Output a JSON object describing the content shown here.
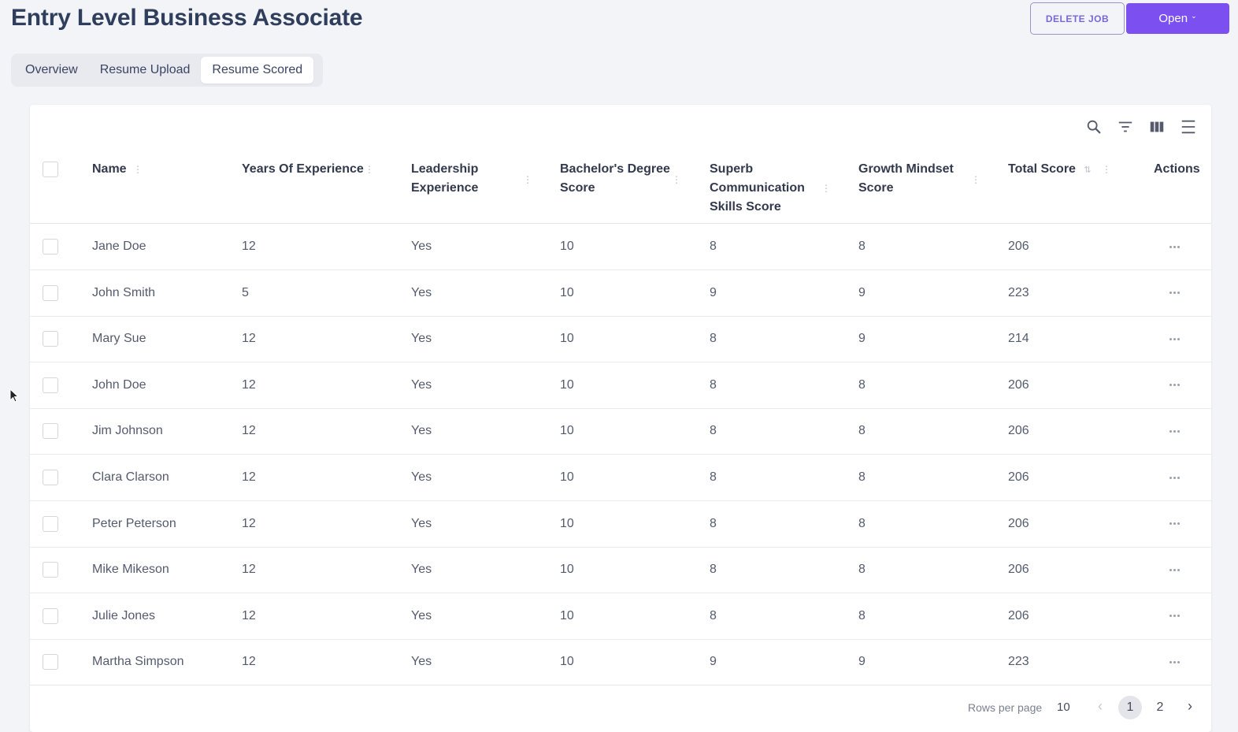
{
  "header": {
    "title": "Entry Level Business Associate",
    "delete_label": "DELETE JOB",
    "status_label": "Open"
  },
  "tabs": [
    {
      "label": "Overview",
      "active": false
    },
    {
      "label": "Resume Upload",
      "active": false
    },
    {
      "label": "Resume Scored",
      "active": true
    }
  ],
  "toolbar": {
    "icons": [
      "search-icon",
      "filter-icon",
      "columns-icon",
      "density-icon"
    ]
  },
  "table": {
    "columns": {
      "name": "Name",
      "years": "Years Of Experience",
      "leadership_l1": "Leadership",
      "leadership_l2": "Experience",
      "bachelors_l1": "Bachelor's Degree",
      "bachelors_l2": "Score",
      "comm_l1": "Superb",
      "comm_l2": "Communication",
      "comm_l3": "Skills Score",
      "growth_l1": "Growth Mindset",
      "growth_l2": "Score",
      "total": "Total Score",
      "actions": "Actions"
    },
    "rows": [
      {
        "name": "Jane Doe",
        "years": "12",
        "leadership": "Yes",
        "bachelors": "10",
        "communication": "8",
        "growth": "8",
        "total": "206"
      },
      {
        "name": "John Smith",
        "years": "5",
        "leadership": "Yes",
        "bachelors": "10",
        "communication": "9",
        "growth": "9",
        "total": "223"
      },
      {
        "name": "Mary Sue",
        "years": "12",
        "leadership": "Yes",
        "bachelors": "10",
        "communication": "8",
        "growth": "9",
        "total": "214"
      },
      {
        "name": "John Doe",
        "years": "12",
        "leadership": "Yes",
        "bachelors": "10",
        "communication": "8",
        "growth": "8",
        "total": "206"
      },
      {
        "name": "Jim Johnson",
        "years": "12",
        "leadership": "Yes",
        "bachelors": "10",
        "communication": "8",
        "growth": "8",
        "total": "206"
      },
      {
        "name": "Clara Clarson",
        "years": "12",
        "leadership": "Yes",
        "bachelors": "10",
        "communication": "8",
        "growth": "8",
        "total": "206"
      },
      {
        "name": "Peter Peterson",
        "years": "12",
        "leadership": "Yes",
        "bachelors": "10",
        "communication": "8",
        "growth": "8",
        "total": "206"
      },
      {
        "name": "Mike Mikeson",
        "years": "12",
        "leadership": "Yes",
        "bachelors": "10",
        "communication": "8",
        "growth": "8",
        "total": "206"
      },
      {
        "name": "Julie Jones",
        "years": "12",
        "leadership": "Yes",
        "bachelors": "10",
        "communication": "8",
        "growth": "8",
        "total": "206"
      },
      {
        "name": "Martha Simpson",
        "years": "12",
        "leadership": "Yes",
        "bachelors": "10",
        "communication": "9",
        "growth": "9",
        "total": "223"
      }
    ]
  },
  "pagination": {
    "rows_per_page_label": "Rows per page",
    "rows_per_page": "10",
    "pages": [
      "1",
      "2"
    ],
    "current_page": "1"
  },
  "colors": {
    "accent": "#7b4ff0",
    "title": "#2f3e5c"
  }
}
